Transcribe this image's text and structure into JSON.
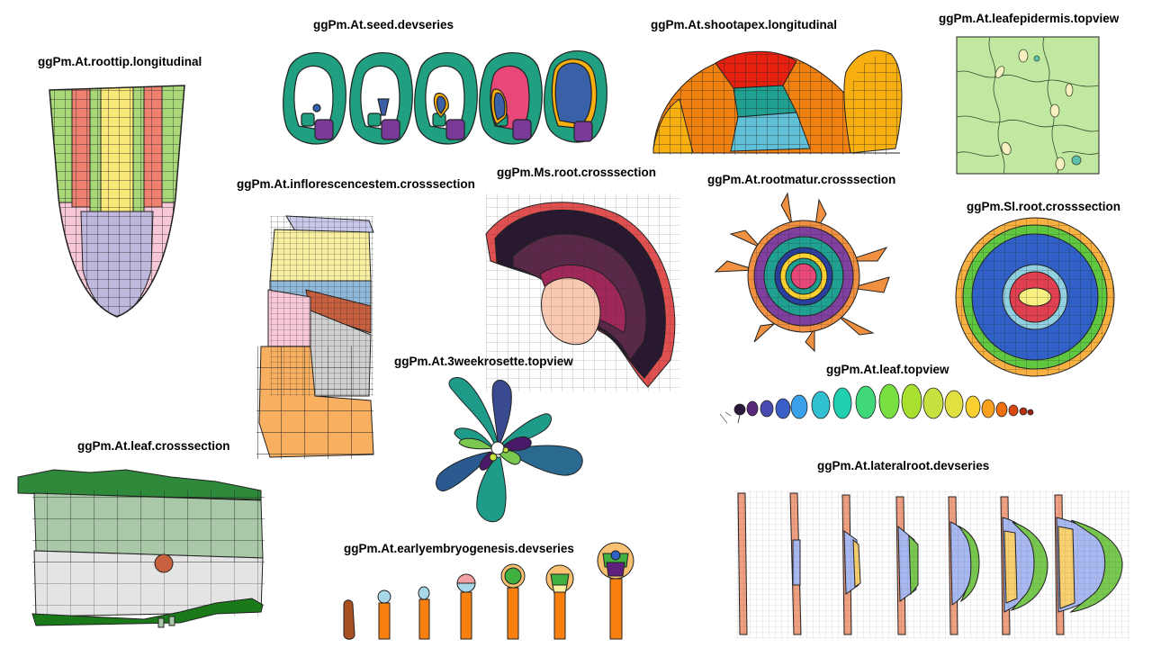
{
  "labels": {
    "roottip": "ggPm.At.roottip.longitudinal",
    "seed": "ggPm.At.seed.devseries",
    "shootapex": "ggPm.At.shootapex.longitudinal",
    "leafepidermis": "ggPm.At.leafepidermis.topview",
    "inflorescencestem": "ggPm.At.inflorescencestem.crosssection",
    "msroot": "ggPm.Ms.root.crosssection",
    "rootmatur": "ggPm.At.rootmatur.crosssection",
    "slroot": "ggPm.Sl.root.crosssection",
    "rosette": "ggPm.At.3weekrosette.topview",
    "leaftop": "ggPm.At.leaf.topview",
    "leafcross": "ggPm.At.leaf.crosssection",
    "lateralroot": "ggPm.At.lateralroot.devseries",
    "embryo": "ggPm.At.earlyembryogenesis.devseries"
  },
  "colors": {
    "epidermis_green": "#a8d878",
    "cortex_salmon": "#f08070",
    "stele_yellow": "#f8e878",
    "columella_lavender": "#c0b8dc",
    "lateral_pink": "#f8c8d8",
    "seed_teal": "#20a080",
    "seed_purple": "#7a3a9a",
    "seed_pink": "#e84878",
    "seed_blue": "#3a60a8",
    "apex_orange": "#f08010",
    "apex_red": "#e82010",
    "apex_teal": "#20a090",
    "apex_lightblue": "#60c0d8",
    "apex_gold": "#f8b010",
    "epi_bg": "#c0e8a0",
    "stem_lavender": "#c8c8e8",
    "stem_cream": "#f8f0a0",
    "stem_blue": "#90b8d8",
    "stem_rust": "#c86040",
    "stem_pink": "#f8c8d8",
    "stem_grey": "#d0d0d0",
    "stem_orange": "#f8b060",
    "ms_dark": "#281830",
    "ms_plum": "#5a2848",
    "ms_rose": "#a02858",
    "ms_peach": "#f8c8b0",
    "ms_red": "#e05050",
    "rm_orange": "#f09040",
    "rm_purple": "#8040a0",
    "rm_teal": "#20a090",
    "rm_navy": "#2840a0",
    "rm_yellow": "#f8d030",
    "sl_orange": "#f8b040",
    "sl_green": "#60c840",
    "sl_blue": "#3060c8",
    "sl_lightblue": "#90d0e0",
    "sl_red": "#e04050",
    "rosette_blue": "#3a5ea0",
    "rosette_teal": "#1f9b8a",
    "rosette_navy": "#3a4a90",
    "rosette_green": "#7ac850",
    "rosette_purple": "#4a1a6a",
    "rosette_yellowgreen": "#c8e040",
    "leaf_green_dark": "#2e8a3a",
    "leaf_green_mid": "#a8c8a8",
    "leaf_grey": "#e4e4e4",
    "leaf_darkgreen": "#1a7a1a",
    "lr_salmon": "#f0a080",
    "lr_blue": "#a8b8f0",
    "lr_green": "#78c850",
    "lr_gold": "#f8d070",
    "em_brown": "#a85020",
    "em_orange": "#f88010",
    "em_lightblue": "#a8d8e8",
    "em_pink": "#f0a0a0",
    "em_green": "#40b040",
    "em_cream": "#f8f0a0",
    "em_purple": "#602080",
    "em_peach": "#f8c070"
  }
}
